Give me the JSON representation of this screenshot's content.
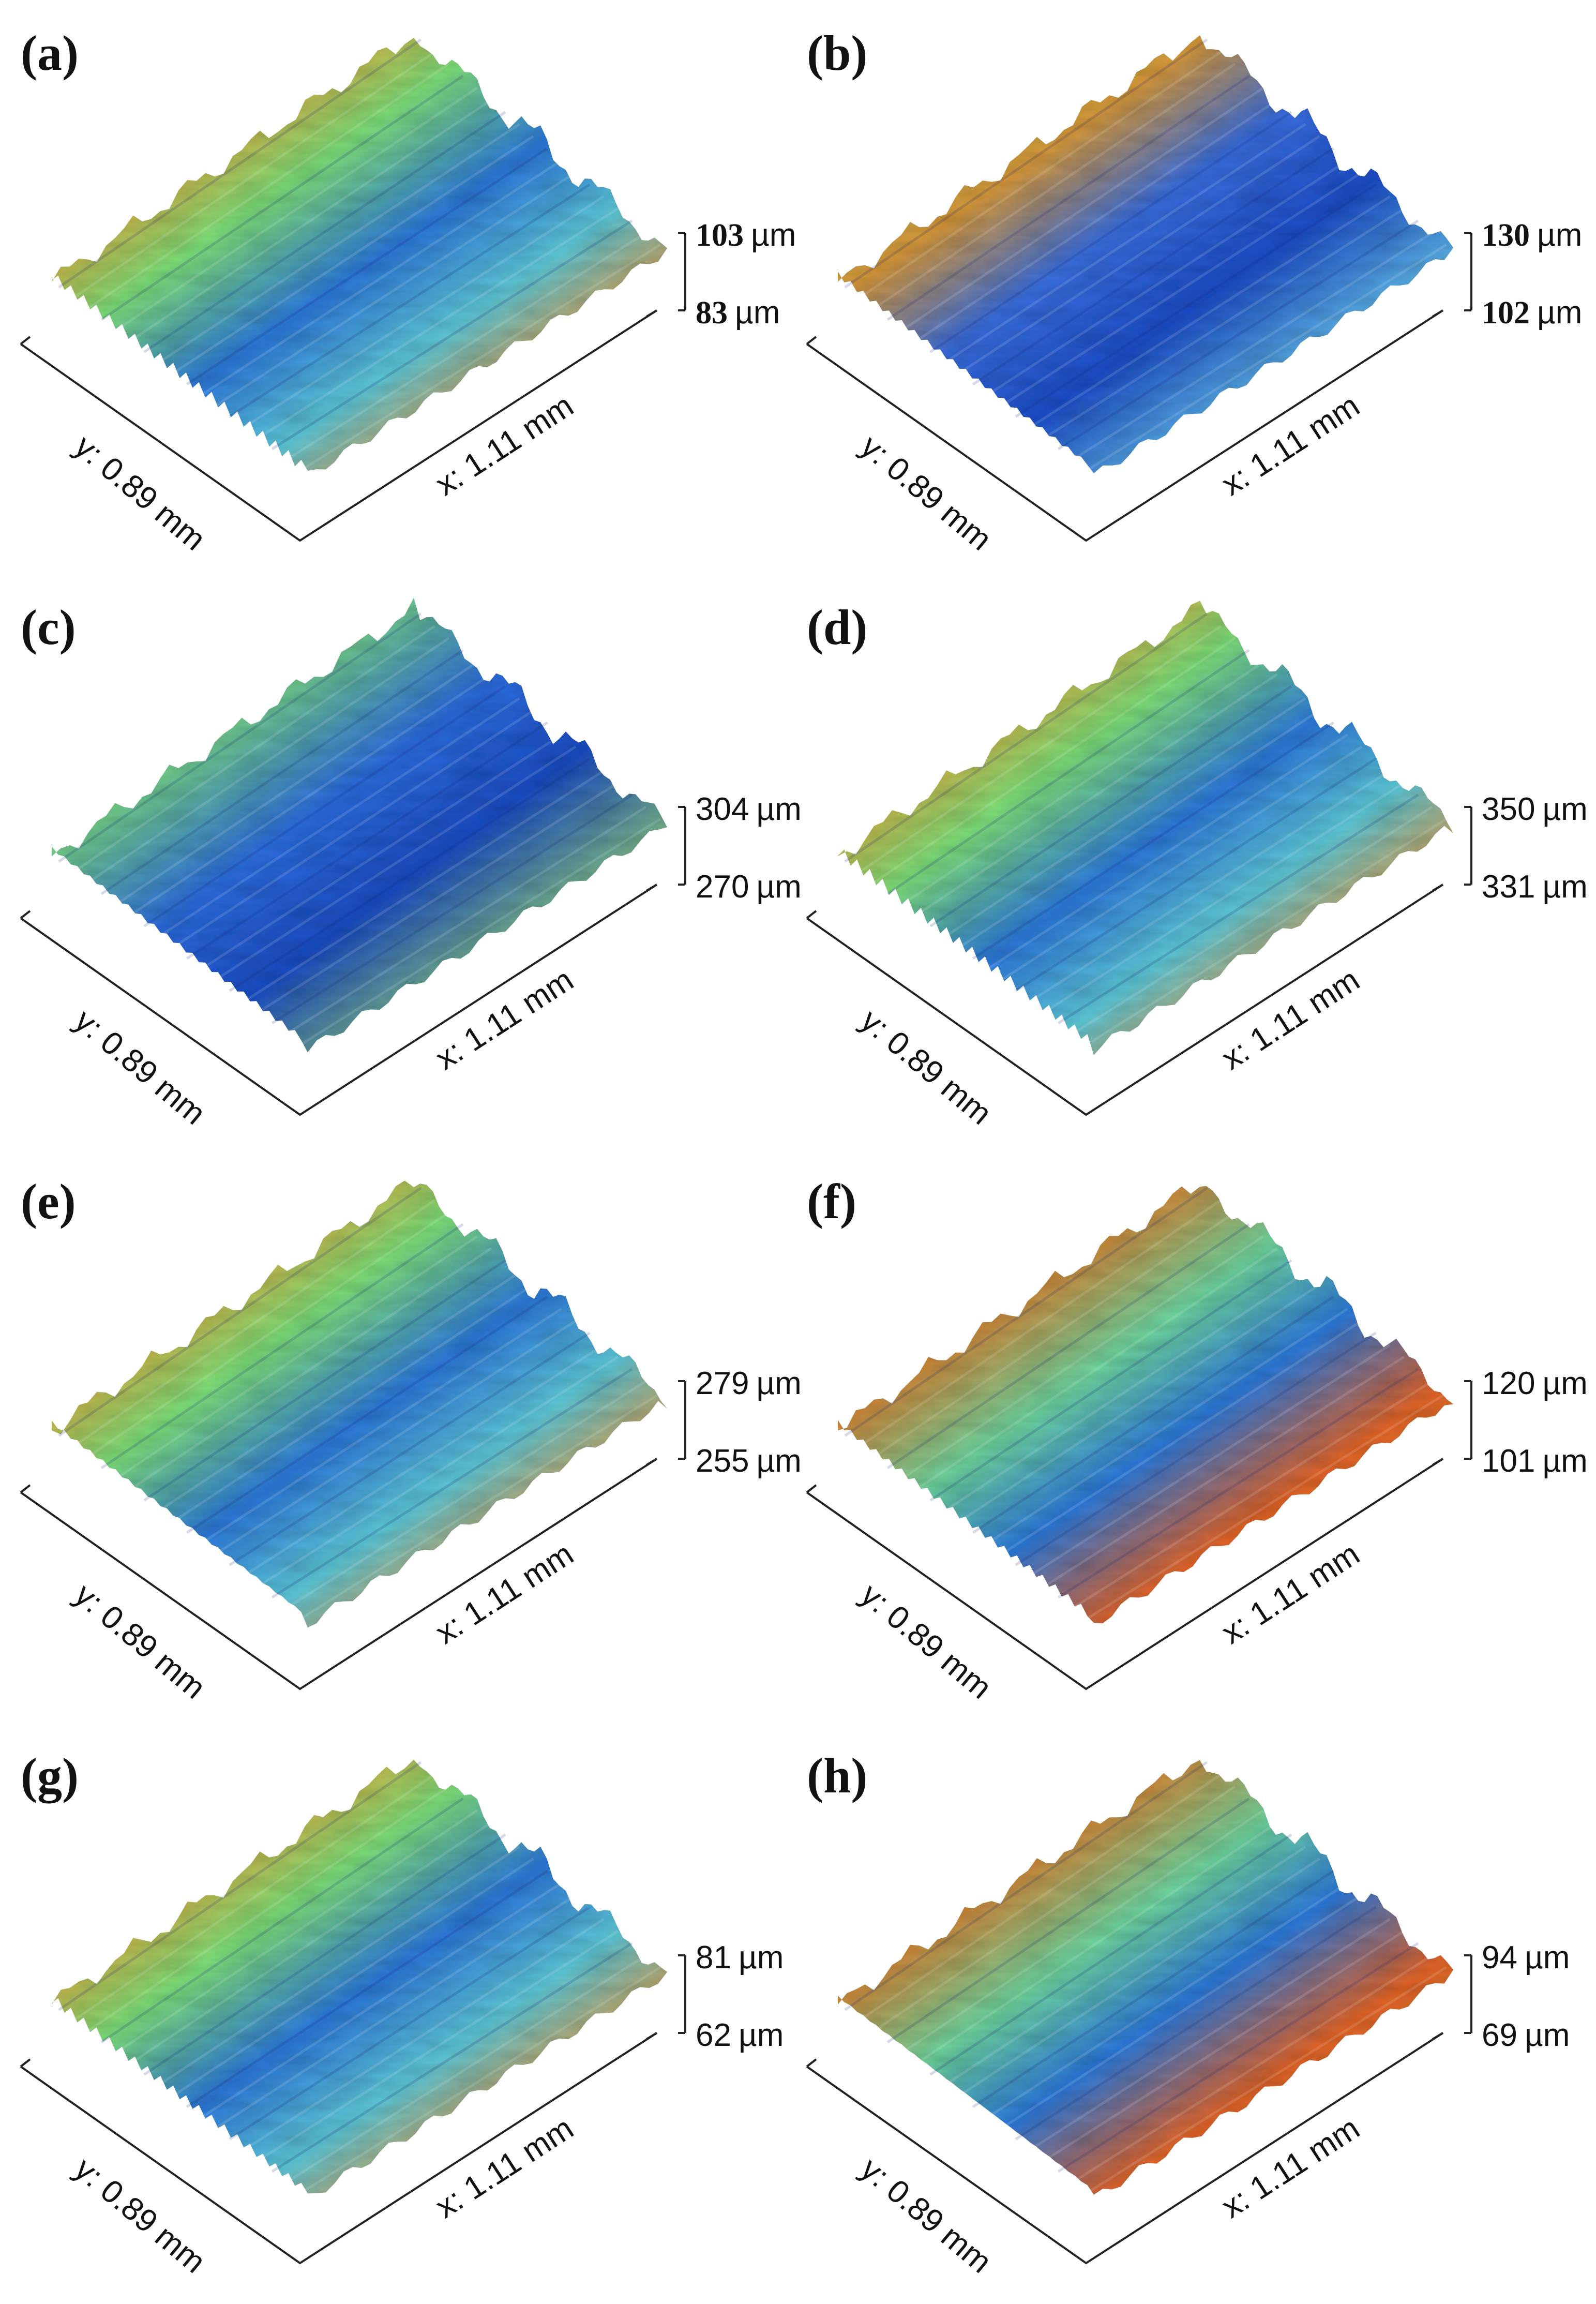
{
  "figure": {
    "panels": [
      {
        "id": "a",
        "label": "(a)",
        "x_label": "x: 1.11 mm",
        "y_label": "y: 0.89 mm",
        "z_top": "103",
        "z_bottom": "83",
        "z_unit": "µm",
        "scheme": "orange"
      },
      {
        "id": "b",
        "label": "(b)",
        "x_label": "x: 1.11 mm",
        "y_label": "y: 0.89 mm",
        "z_top": "130",
        "z_bottom": "102",
        "z_unit": "µm",
        "scheme": "green"
      },
      {
        "id": "c",
        "label": "(c)",
        "x_label": "x: 1.11 mm",
        "y_label": "y: 0.89 mm",
        "z_top": "304",
        "z_bottom": "270",
        "z_unit": "µm",
        "scheme": "lime"
      },
      {
        "id": "d",
        "label": "(d)",
        "x_label": "x: 1.11 mm",
        "y_label": "y: 0.89 mm",
        "z_top": "350",
        "z_bottom": "331",
        "z_unit": "µm",
        "scheme": "orange"
      },
      {
        "id": "e",
        "label": "(e)",
        "x_label": "x: 1.11 mm",
        "y_label": "y: 0.89 mm",
        "z_top": "279",
        "z_bottom": "255",
        "z_unit": "µm",
        "scheme": "orange"
      },
      {
        "id": "f",
        "label": "(f)",
        "x_label": "x: 1.11 mm",
        "y_label": "y: 0.89 mm",
        "z_top": "120",
        "z_bottom": "101",
        "z_unit": "µm",
        "scheme": "gold"
      },
      {
        "id": "g",
        "label": "(g)",
        "x_label": "x: 1.11 mm",
        "y_label": "y: 0.89 mm",
        "z_top": "81",
        "z_bottom": "62",
        "z_unit": "µm",
        "scheme": "orange"
      },
      {
        "id": "h",
        "label": "(h)",
        "x_label": "x: 1.11 mm",
        "y_label": "y: 0.89 mm",
        "z_top": "94",
        "z_bottom": "69",
        "z_unit": "µm",
        "scheme": "gold"
      }
    ]
  }
}
